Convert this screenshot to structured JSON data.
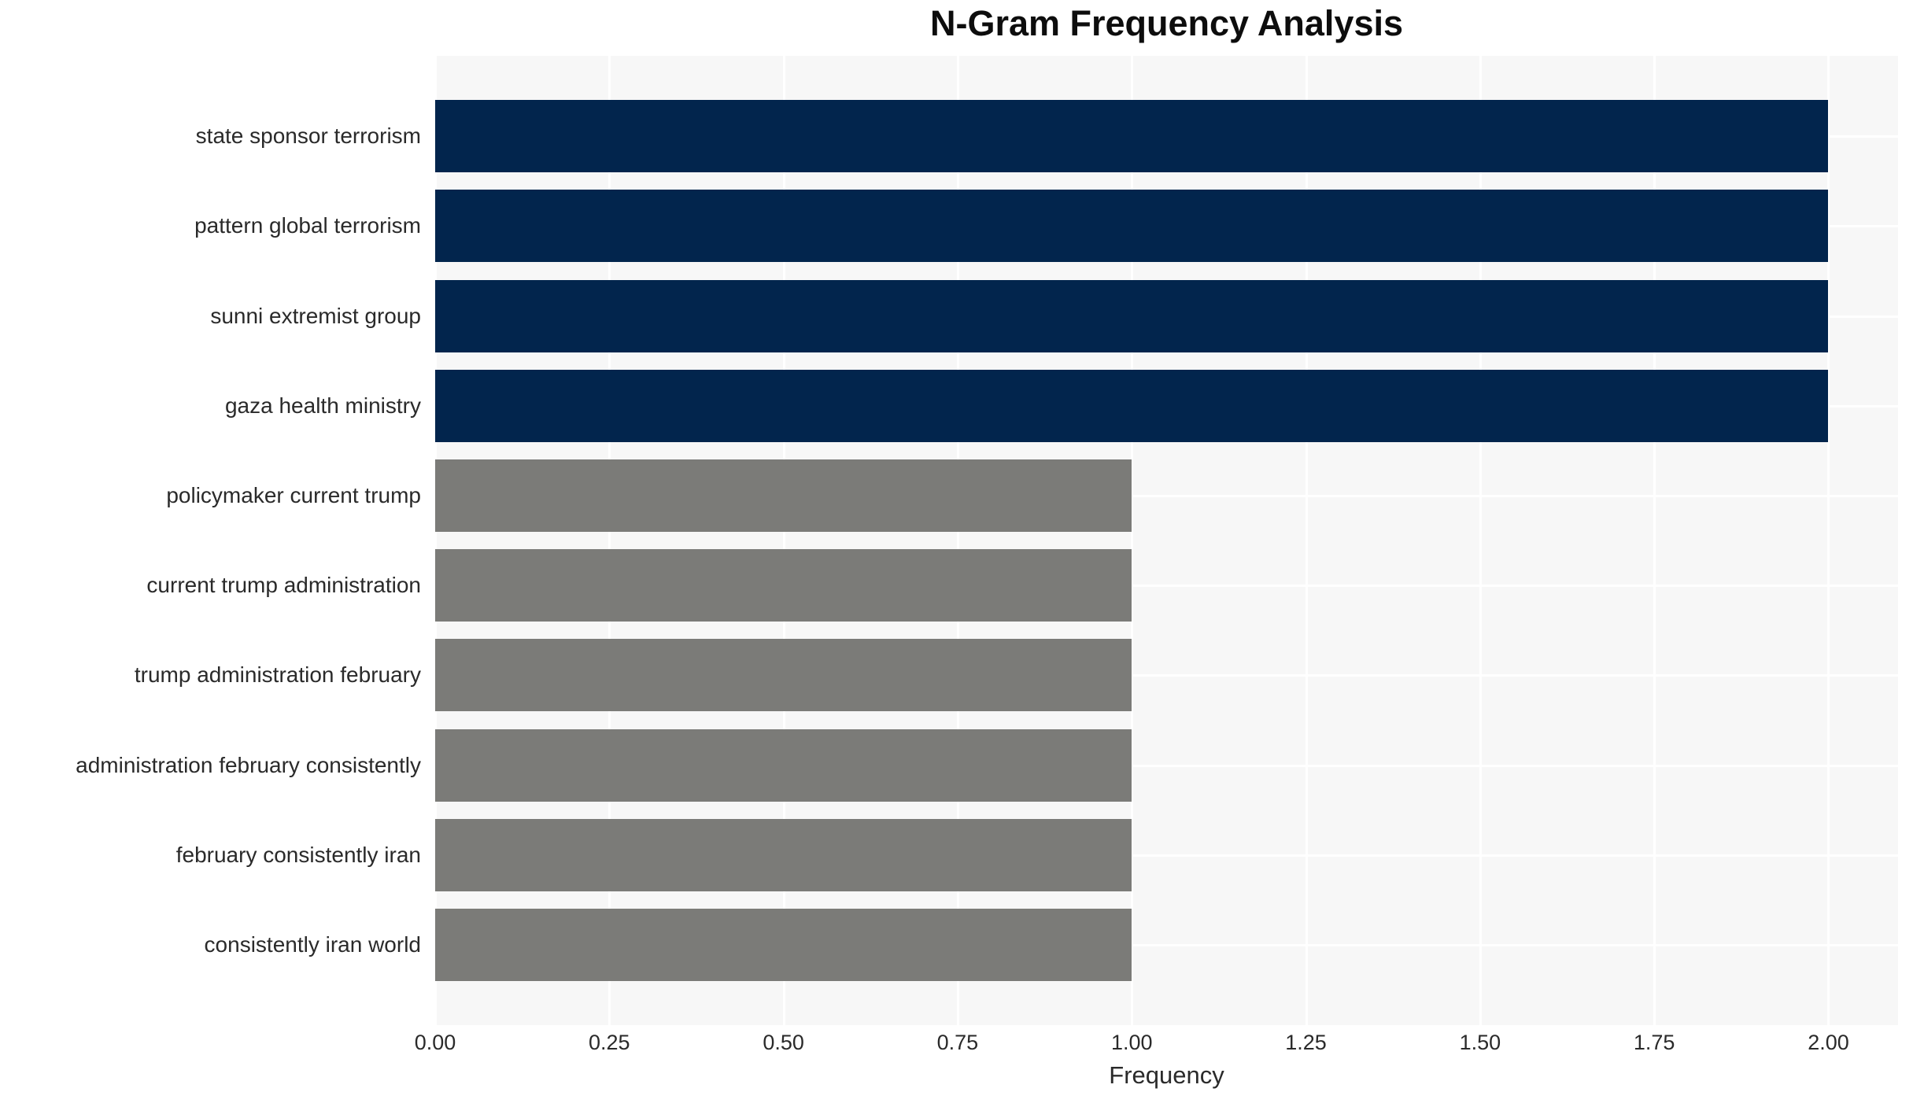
{
  "chart_data": {
    "type": "bar",
    "orientation": "horizontal",
    "title": "N-Gram Frequency Analysis",
    "xlabel": "Frequency",
    "ylabel": "",
    "categories": [
      "state sponsor terrorism",
      "pattern global terrorism",
      "sunni extremist group",
      "gaza health ministry",
      "policymaker current trump",
      "current trump administration",
      "trump administration february",
      "administration february consistently",
      "february consistently iran",
      "consistently iran world"
    ],
    "values": [
      2,
      2,
      2,
      2,
      1,
      1,
      1,
      1,
      1,
      1
    ],
    "bar_colors": [
      "#02254d",
      "#02254d",
      "#02254d",
      "#02254d",
      "#7b7b78",
      "#7b7b78",
      "#7b7b78",
      "#7b7b78",
      "#7b7b78",
      "#7b7b78"
    ],
    "xlim": [
      0,
      2.1
    ],
    "xticks": [
      0,
      0.25,
      0.5,
      0.75,
      1.0,
      1.25,
      1.5,
      1.75,
      2.0
    ],
    "xtick_labels": [
      "0.00",
      "0.25",
      "0.50",
      "0.75",
      "1.00",
      "1.25",
      "1.50",
      "1.75",
      "2.00"
    ],
    "grid": true,
    "legend_position": "none",
    "colors": {
      "high_freq_bar": "#02254d",
      "low_freq_bar": "#7b7b78",
      "plot_background": "#f7f7f7",
      "gridline": "#ffffff",
      "title_text": "#0d0d0d",
      "axis_text": "#2a2a2a",
      "figure_background": "#ffffff"
    }
  }
}
